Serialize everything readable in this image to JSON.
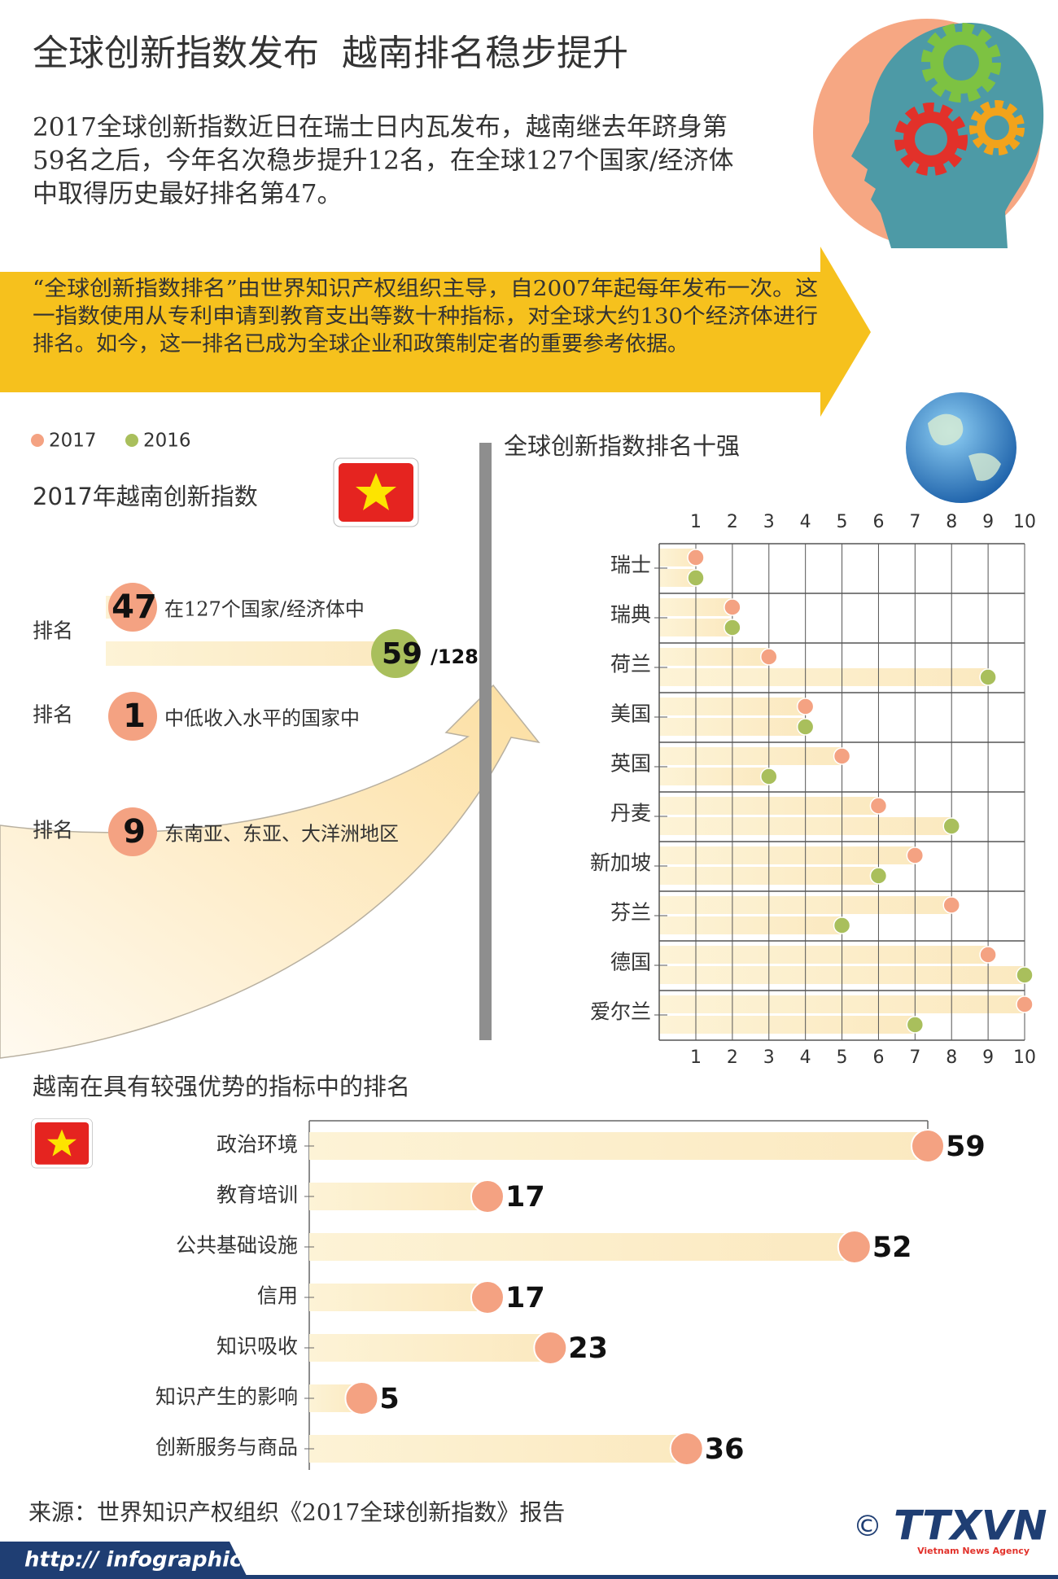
{
  "header": {
    "title": "全球创新指数发布  越南排名稳步提升",
    "intro_lines": [
      "2017全球创新指数近日在瑞士日内瓦发布，越南继去年跻身第",
      "59名之后，今年名次稳步提升12名，在全球127个国家/经济体",
      "中取得历史最好排名第47。"
    ]
  },
  "banner": {
    "lines": [
      "“全球创新指数排名”由世界知识产权组织主导，自2007年起每年发布一次。这",
      "一指数使用从专利申请到教育支出等数十种指标，对全球大约130个经济体进行",
      "排名。如今，这一排名已成为全球企业和政策制定者的重要参考依据。"
    ]
  },
  "vietnam_index": {
    "title": "2017年越南创新指数",
    "ranks": [
      {
        "label": "排名",
        "value": 47,
        "note": "在127个国家/经济体中",
        "previous": 59,
        "previous_total": "/128"
      },
      {
        "label": "排名",
        "value": 1,
        "note": "中低收入水平的国家中"
      },
      {
        "label": "排名",
        "value": 9,
        "note": "东南亚、东亚、大洋洲地区"
      }
    ]
  },
  "chart_data": [
    {
      "type": "dot",
      "title": "全球创新指数排名十强",
      "categories": [
        "瑞士",
        "瑞典",
        "荷兰",
        "美国",
        "英国",
        "丹麦",
        "新加坡",
        "芬兰",
        "德国",
        "爱尔兰"
      ],
      "series": [
        {
          "name": "2017",
          "color": "#f4a282",
          "values": [
            1,
            2,
            3,
            4,
            5,
            6,
            7,
            8,
            9,
            10
          ]
        },
        {
          "name": "2016",
          "color": "#a9bf5c",
          "values": [
            1,
            2,
            9,
            4,
            3,
            8,
            6,
            5,
            10,
            7
          ]
        }
      ],
      "xlim": [
        1,
        10
      ],
      "xticks": [
        1,
        2,
        3,
        4,
        5,
        6,
        7,
        8,
        9,
        10
      ],
      "grid": true
    },
    {
      "type": "bar",
      "title": "越南在具有较强优势的指标中的排名",
      "categories": [
        "政治环境",
        "教育培训",
        "公共基础设施",
        "信用",
        "知识吸收",
        "知识产生的影响",
        "创新服务与商品"
      ],
      "values": [
        59,
        17,
        52,
        17,
        23,
        5,
        36
      ],
      "color": "#f4a282"
    }
  ],
  "footer": {
    "source": "来源：世界知识产权组织《2017全球创新指数》报告",
    "url": "http:// infographics.vn",
    "copyright": "©",
    "logo": "TTXVN",
    "agency": "Vietnam News Agency"
  }
}
